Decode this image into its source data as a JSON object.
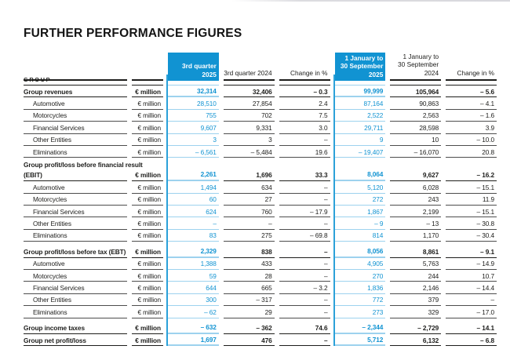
{
  "page": {
    "title": "FURTHER PERFORMANCE FIGURES"
  },
  "colors": {
    "accent_blue": "#1193d2",
    "light_blue_rule": "#9dd2ee",
    "dark_rule": "#1d1d1b",
    "sub_rule_gray": "#4d4d4d"
  },
  "table": {
    "section_header": "GROUP",
    "unit_label": "€ million",
    "column_headers": [
      {
        "lines": [
          "3rd quarter 2025"
        ],
        "highlight": true
      },
      {
        "lines": [
          "3rd quarter 2024"
        ],
        "highlight": false
      },
      {
        "lines": [
          "Change in %"
        ],
        "highlight": false
      },
      {
        "lines": [
          "1 January to",
          "30 September 2025"
        ],
        "highlight": true
      },
      {
        "lines": [
          "1 January to",
          "30 September 2024"
        ],
        "highlight": false
      },
      {
        "lines": [
          "Change in %"
        ],
        "highlight": false
      }
    ],
    "highlight_column_indexes": [
      0,
      3
    ],
    "sections": [
      {
        "rows": [
          {
            "label": "Group revenues",
            "bold": true,
            "values": [
              "32,314",
              "32,406",
              "– 0.3",
              "99,999",
              "105,964",
              "– 5.6"
            ]
          },
          {
            "label": "Automotive",
            "indent": true,
            "values": [
              "28,510",
              "27,854",
              "2.4",
              "87,164",
              "90,863",
              "– 4.1"
            ]
          },
          {
            "label": "Motorcycles",
            "indent": true,
            "values": [
              "755",
              "702",
              "7.5",
              "2,522",
              "2,563",
              "– 1.6"
            ]
          },
          {
            "label": "Financial Services",
            "indent": true,
            "values": [
              "9,607",
              "9,331",
              "3.0",
              "29,711",
              "28,598",
              "3.9"
            ]
          },
          {
            "label": "Other Entities",
            "indent": true,
            "values": [
              "3",
              "3",
              "–",
              "9",
              "10",
              "– 10.0"
            ]
          },
          {
            "label": "Eliminations",
            "indent": true,
            "values": [
              "– 6,561",
              "– 5,484",
              "19.6",
              "– 19,407",
              "– 16,070",
              "20.8"
            ]
          }
        ]
      },
      {
        "rows": [
          {
            "label_top": "Group profit/loss before financial result",
            "label": "(EBIT)",
            "bold": true,
            "values": [
              "2,261",
              "1,696",
              "33.3",
              "8,064",
              "9,627",
              "– 16.2"
            ]
          },
          {
            "label": "Automotive",
            "indent": true,
            "values": [
              "1,494",
              "634",
              "–",
              "5,120",
              "6,028",
              "– 15.1"
            ]
          },
          {
            "label": "Motorcycles",
            "indent": true,
            "values": [
              "60",
              "27",
              "–",
              "272",
              "243",
              "11.9"
            ]
          },
          {
            "label": "Financial Services",
            "indent": true,
            "values": [
              "624",
              "760",
              "– 17.9",
              "1,867",
              "2,199",
              "– 15.1"
            ]
          },
          {
            "label": "Other Entities",
            "indent": true,
            "values": [
              "–",
              "–",
              "–",
              "– 9",
              "– 13",
              "– 30.8"
            ]
          },
          {
            "label": "Eliminations",
            "indent": true,
            "values": [
              "83",
              "275",
              "– 69.8",
              "814",
              "1,170",
              "– 30.4"
            ]
          }
        ]
      },
      {
        "rows": [
          {
            "label": "Group profit/loss before tax (EBT)",
            "bold": true,
            "values": [
              "2,329",
              "838",
              "–",
              "8,056",
              "8,861",
              "– 9.1"
            ]
          },
          {
            "label": "Automotive",
            "indent": true,
            "values": [
              "1,388",
              "433",
              "–",
              "4,905",
              "5,763",
              "– 14.9"
            ]
          },
          {
            "label": "Motorcycles",
            "indent": true,
            "values": [
              "59",
              "28",
              "–",
              "270",
              "244",
              "10.7"
            ]
          },
          {
            "label": "Financial Services",
            "indent": true,
            "values": [
              "644",
              "665",
              "– 3.2",
              "1,836",
              "2,146",
              "– 14.4"
            ]
          },
          {
            "label": "Other Entities",
            "indent": true,
            "values": [
              "300",
              "– 317",
              "–",
              "772",
              "379",
              "–"
            ]
          },
          {
            "label": "Eliminations",
            "indent": true,
            "values": [
              "– 62",
              "29",
              "–",
              "273",
              "329",
              "– 17.0"
            ]
          }
        ]
      },
      {
        "rows": [
          {
            "label": "Group income taxes",
            "bold": true,
            "values": [
              "– 632",
              "– 362",
              "74.6",
              "– 2,344",
              "– 2,729",
              "– 14.1"
            ]
          },
          {
            "label": "Group net profit/loss",
            "bold": true,
            "values": [
              "1,697",
              "476",
              "–",
              "5,712",
              "6,132",
              "– 6.8"
            ]
          }
        ]
      }
    ]
  }
}
